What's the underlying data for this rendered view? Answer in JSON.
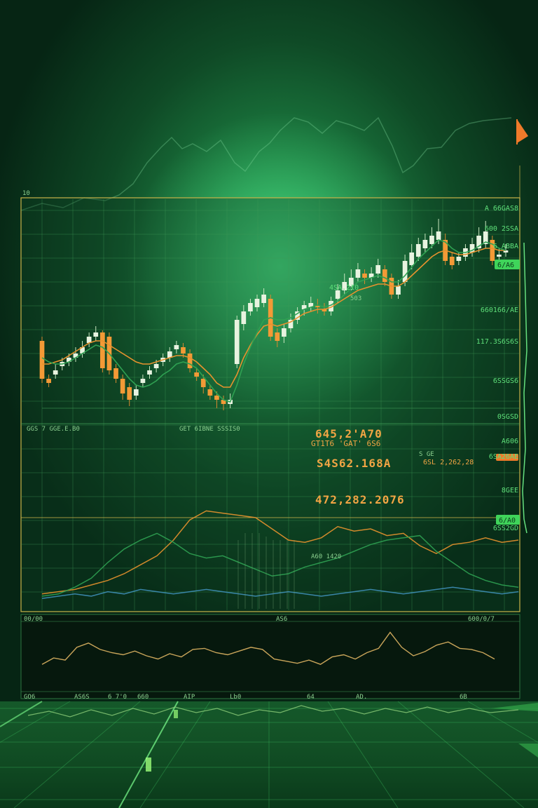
{
  "colors": {
    "bull": "#e8f3e0",
    "bear": "#f39a36",
    "accent_green": "#57d76b",
    "line_orange": "#e8922e",
    "line_green": "#2fa152",
    "grid": "#3f9a55",
    "frame": "#c9b34a"
  },
  "chart_data": [
    {
      "type": "candlestick",
      "title": "",
      "x": [
        1,
        2,
        3,
        4,
        5,
        6,
        7,
        8,
        9,
        10,
        11,
        12,
        13,
        14,
        15,
        16,
        17,
        18,
        19,
        20,
        21,
        22,
        23,
        24,
        25,
        26,
        27,
        28,
        29,
        30,
        31,
        32,
        33,
        34,
        35,
        36,
        37,
        38,
        39,
        40,
        41,
        42,
        43,
        44,
        45,
        46,
        47,
        48,
        49,
        50,
        51,
        52,
        53,
        54,
        55,
        56,
        57,
        58,
        59,
        60,
        61,
        62,
        63,
        64,
        65,
        66,
        67,
        68,
        69,
        70
      ],
      "open": [
        58,
        40,
        42,
        46,
        48,
        50,
        52,
        57,
        60,
        62,
        60,
        45,
        40,
        36,
        32,
        38,
        42,
        45,
        48,
        50,
        54,
        55,
        52,
        43,
        40,
        35,
        32,
        30,
        28,
        47,
        66,
        72,
        74,
        76,
        78,
        62,
        60,
        64,
        68,
        73,
        74,
        75,
        73,
        72,
        78,
        82,
        84,
        88,
        90,
        88,
        90,
        92,
        88,
        80,
        86,
        94,
        98,
        102,
        104,
        106,
        106,
        98,
        96,
        98,
        100,
        102,
        104,
        106,
        98,
        100
      ],
      "close": [
        40,
        38,
        44,
        48,
        50,
        52,
        55,
        60,
        62,
        45,
        44,
        40,
        33,
        30,
        35,
        40,
        44,
        47,
        50,
        53,
        56,
        52,
        45,
        41,
        36,
        32,
        30,
        28,
        30,
        68,
        72,
        76,
        78,
        80,
        60,
        58,
        64,
        68,
        72,
        75,
        76,
        74,
        72,
        77,
        82,
        86,
        88,
        92,
        88,
        90,
        94,
        86,
        80,
        84,
        96,
        100,
        104,
        106,
        108,
        110,
        96,
        94,
        98,
        102,
        104,
        108,
        110,
        96,
        99,
        101
      ],
      "high": [
        60,
        42,
        47,
        50,
        52,
        55,
        58,
        62,
        65,
        63,
        62,
        47,
        42,
        38,
        37,
        42,
        46,
        49,
        52,
        55,
        58,
        57,
        54,
        45,
        42,
        37,
        34,
        32,
        33,
        70,
        75,
        78,
        80,
        83,
        80,
        64,
        66,
        71,
        74,
        77,
        79,
        78,
        76,
        79,
        85,
        90,
        92,
        95,
        92,
        93,
        97,
        94,
        90,
        87,
        99,
        104,
        107,
        109,
        112,
        116,
        109,
        100,
        100,
        104,
        107,
        112,
        115,
        108,
        102,
        104
      ],
      "low": [
        38,
        36,
        40,
        44,
        46,
        48,
        50,
        55,
        58,
        43,
        42,
        38,
        30,
        27,
        30,
        36,
        40,
        43,
        46,
        48,
        52,
        50,
        43,
        39,
        33,
        30,
        26,
        25,
        26,
        45,
        63,
        70,
        72,
        74,
        58,
        55,
        57,
        62,
        66,
        70,
        72,
        71,
        70,
        70,
        76,
        80,
        82,
        86,
        85,
        86,
        88,
        84,
        78,
        78,
        84,
        92,
        96,
        100,
        102,
        104,
        94,
        92,
        94,
        96,
        98,
        100,
        102,
        94,
        96,
        98
      ],
      "ylim": [
        20,
        120
      ],
      "series": [
        {
          "color": "#e8922e",
          "values": [
            47,
            47,
            48,
            49,
            51,
            53,
            55,
            57,
            58,
            58,
            56,
            54,
            52,
            50,
            48,
            47,
            47,
            48,
            49,
            50,
            51,
            51,
            50,
            48,
            45,
            42,
            38,
            36,
            36,
            42,
            50,
            56,
            61,
            65,
            66,
            65,
            66,
            67,
            69,
            71,
            72,
            73,
            73,
            74,
            76,
            78,
            80,
            82,
            83,
            84,
            85,
            85,
            84,
            84,
            86,
            89,
            92,
            95,
            98,
            100,
            101,
            100,
            99,
            99,
            100,
            101,
            102,
            102,
            101,
            101
          ]
        },
        {
          "color": "#2fa152",
          "values": [
            50,
            48,
            47,
            47,
            48,
            50,
            52,
            54,
            56,
            55,
            52,
            48,
            44,
            40,
            37,
            36,
            37,
            39,
            42,
            44,
            47,
            48,
            47,
            45,
            41,
            37,
            33,
            30,
            29,
            37,
            47,
            55,
            62,
            68,
            69,
            68,
            68,
            69,
            71,
            73,
            74,
            75,
            74,
            75,
            77,
            80,
            83,
            86,
            87,
            88,
            89,
            88,
            86,
            86,
            89,
            93,
            97,
            100,
            103,
            106,
            105,
            102,
            100,
            100,
            101,
            103,
            105,
            104,
            102,
            101
          ]
        }
      ]
    },
    {
      "type": "line",
      "title": "",
      "x": [
        1,
        2,
        3,
        4,
        5,
        6,
        7,
        8,
        9,
        10,
        11,
        12,
        13,
        14,
        15,
        16,
        17,
        18,
        19,
        20,
        21,
        22,
        23,
        24,
        25,
        26,
        27,
        28,
        29,
        30
      ],
      "ylim": [
        0,
        100
      ],
      "series": [
        {
          "color": "#e8922e",
          "values": [
            12,
            14,
            16,
            20,
            24,
            30,
            38,
            46,
            60,
            78,
            86,
            84,
            82,
            80,
            70,
            60,
            58,
            62,
            72,
            68,
            70,
            64,
            66,
            55,
            48,
            56,
            58,
            62,
            58,
            60
          ]
        },
        {
          "color": "#2fa152",
          "values": [
            10,
            12,
            18,
            26,
            40,
            52,
            60,
            66,
            58,
            48,
            44,
            46,
            40,
            34,
            28,
            30,
            36,
            40,
            44,
            50,
            56,
            60,
            62,
            64,
            50,
            40,
            30,
            24,
            20,
            18
          ]
        },
        {
          "color": "#3f8fb8",
          "values": [
            8,
            10,
            12,
            10,
            14,
            12,
            16,
            14,
            12,
            14,
            16,
            14,
            12,
            10,
            12,
            14,
            12,
            10,
            12,
            14,
            16,
            14,
            12,
            14,
            16,
            18,
            16,
            14,
            12,
            14
          ]
        }
      ]
    },
    {
      "type": "line",
      "title": "",
      "x": [
        1,
        2,
        3,
        4,
        5,
        6,
        7,
        8,
        9,
        10,
        11,
        12,
        13,
        14,
        15,
        16,
        17,
        18,
        19,
        20,
        21,
        22,
        23,
        24,
        25,
        26,
        27,
        28,
        29,
        30,
        31,
        32,
        33,
        34,
        35,
        36,
        37,
        38,
        39,
        40
      ],
      "ylim": [
        0,
        100
      ],
      "series": [
        {
          "color": "#c9a55a",
          "values": [
            30,
            42,
            38,
            62,
            70,
            58,
            52,
            48,
            55,
            46,
            40,
            50,
            44,
            58,
            60,
            52,
            48,
            55,
            62,
            58,
            40,
            36,
            32,
            38,
            30,
            44,
            48,
            40,
            52,
            60,
            90,
            62,
            46,
            54,
            66,
            72,
            60,
            58,
            52,
            40
          ]
        }
      ]
    }
  ],
  "labels": {
    "main_price_1": "645,2'A70",
    "main_price_2": "S4S62.168A",
    "main_price_3": "472,282.2076",
    "upper_tag": "4SA.210",
    "upper_tag_2": "503",
    "mid_tag_1": "GT1T6 'GAT' 6S6",
    "mid_tag_2": "S GE",
    "mid_tag_3": "6SL 2,262,28",
    "lower_tag": "A60 1420",
    "axis_top": "10",
    "strip_labels": [
      "GO6",
      "AS6S",
      "6 7'0",
      "660",
      "AIP",
      "Lb0",
      "64",
      "AD.",
      "6B"
    ],
    "panel2_header": [
      "00/00",
      "AS6",
      "600/0/7"
    ],
    "right_axis": [
      "A 66GAS8",
      "600 2SSA",
      "6 ABBA",
      "660166/AE",
      "117.3S6S6S",
      "6SSGS6",
      "0SGSD",
      "A606",
      "6SA26AE",
      "8GEE",
      "6SS2GD"
    ],
    "badge_1": "6/A6",
    "badge_2": "6/A0",
    "bottom_row_label": "GET  6IBNE  SSSIS0",
    "mid_row_label": "GGS  7  GGE.E.B0"
  }
}
